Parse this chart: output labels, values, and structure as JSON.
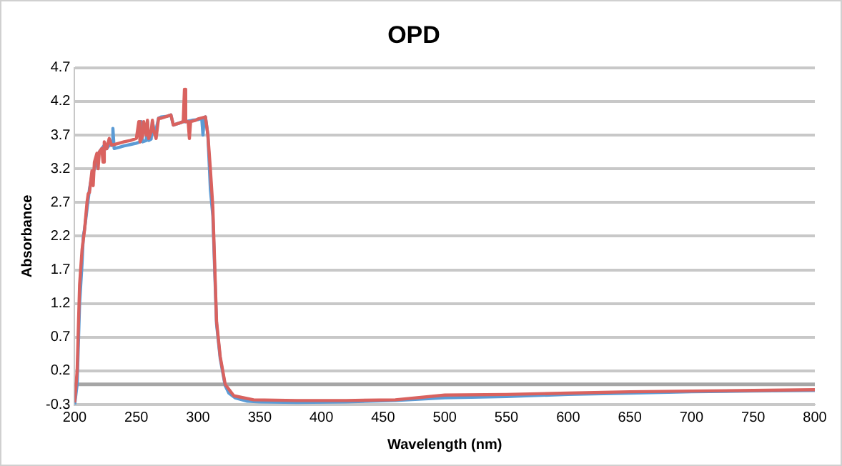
{
  "chart_data": {
    "type": "line",
    "title": "OPD",
    "xlabel": "Wavelength (nm)",
    "ylabel": "Absorbance",
    "xlim": [
      200,
      800
    ],
    "xticks": [
      200,
      250,
      300,
      350,
      400,
      450,
      500,
      550,
      600,
      650,
      700,
      750,
      800
    ],
    "ylim": [
      -0.3,
      4.7
    ],
    "yticks": [
      -0.3,
      0.2,
      0.7,
      1.2,
      1.7,
      2.2,
      2.7,
      3.2,
      3.7,
      4.2,
      4.7
    ],
    "grid": "y",
    "legend": false,
    "marker": "none",
    "line_style": "solid",
    "ref_lines": [
      {
        "axis": "y",
        "value": 0,
        "color": "#a6a6a6"
      }
    ],
    "series": [
      {
        "color": "#5b9bd5",
        "x": [
          200,
          202,
          204,
          206,
          207,
          208,
          210,
          212,
          214,
          216,
          218,
          220,
          222,
          224,
          226,
          228,
          230,
          231,
          232,
          236,
          240,
          245,
          250,
          253,
          254,
          255,
          258,
          259,
          260,
          262,
          263,
          265,
          268,
          270,
          275,
          278,
          280,
          285,
          288,
          290,
          295,
          300,
          303,
          304,
          305,
          306,
          308,
          310,
          312,
          315,
          318,
          322,
          325,
          330,
          340,
          350,
          380,
          420,
          460,
          500,
          550,
          600,
          650,
          700,
          750,
          800
        ],
        "values": [
          -0.3,
          0.0,
          1.2,
          1.8,
          2.2,
          2.3,
          2.6,
          2.9,
          3.1,
          3.2,
          3.35,
          3.45,
          3.5,
          3.55,
          3.5,
          3.55,
          3.55,
          3.8,
          3.5,
          3.52,
          3.54,
          3.56,
          3.58,
          3.6,
          3.9,
          3.6,
          3.62,
          3.9,
          3.62,
          3.64,
          3.9,
          3.7,
          3.95,
          3.97,
          3.98,
          4.0,
          3.85,
          3.88,
          3.9,
          3.9,
          3.92,
          3.93,
          3.95,
          3.7,
          3.95,
          3.97,
          3.7,
          2.9,
          2.5,
          0.9,
          0.38,
          -0.02,
          -0.13,
          -0.2,
          -0.25,
          -0.26,
          -0.27,
          -0.26,
          -0.24,
          -0.2,
          -0.18,
          -0.15,
          -0.13,
          -0.11,
          -0.1,
          -0.09
        ]
      },
      {
        "color": "#d9625f",
        "x": [
          200,
          202,
          204,
          206,
          208,
          210,
          211,
          212,
          214,
          215,
          216,
          218,
          219,
          220,
          222,
          223,
          224,
          226,
          228,
          230,
          236,
          240,
          245,
          250,
          252,
          253,
          255,
          256,
          258,
          259,
          260,
          262,
          263,
          264,
          266,
          268,
          270,
          275,
          278,
          280,
          285,
          288,
          289,
          290,
          292,
          293,
          294,
          298,
          300,
          306,
          308,
          310,
          312,
          315,
          318,
          322,
          329,
          345,
          380,
          420,
          460,
          500,
          550,
          600,
          650,
          700,
          750,
          800
        ],
        "values": [
          -0.27,
          0.2,
          1.48,
          2.0,
          2.29,
          2.7,
          2.83,
          2.85,
          3.17,
          2.95,
          3.3,
          3.43,
          3.2,
          3.45,
          3.5,
          3.3,
          3.6,
          3.5,
          3.65,
          3.55,
          3.58,
          3.6,
          3.62,
          3.65,
          3.9,
          3.6,
          3.68,
          3.9,
          3.7,
          3.92,
          3.65,
          3.75,
          3.92,
          3.77,
          3.65,
          3.95,
          3.95,
          3.98,
          4.0,
          3.85,
          3.88,
          3.9,
          4.38,
          3.9,
          3.9,
          3.65,
          3.9,
          3.92,
          3.94,
          3.97,
          3.7,
          3.2,
          2.63,
          0.94,
          0.41,
          0.0,
          -0.17,
          -0.23,
          -0.24,
          -0.24,
          -0.23,
          -0.16,
          -0.15,
          -0.13,
          -0.11,
          -0.1,
          -0.09,
          -0.08
        ]
      }
    ]
  }
}
